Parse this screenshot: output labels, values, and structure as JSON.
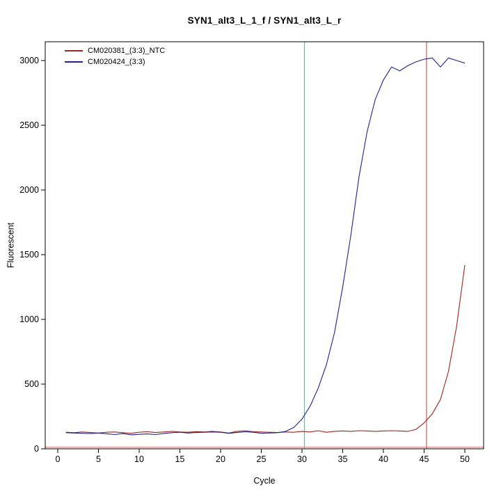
{
  "chart_data": {
    "type": "line",
    "title": "SYN1_alt3_L_1_f / SYN1_alt3_L_r",
    "xlabel": "Cycle",
    "ylabel": "Fluorescent",
    "xlim": [
      0,
      50
    ],
    "ylim": [
      0,
      3000
    ],
    "xticks": [
      0,
      5,
      10,
      15,
      20,
      25,
      30,
      35,
      40,
      45,
      50
    ],
    "yticks": [
      0,
      500,
      1000,
      1500,
      2000,
      2500,
      3000
    ],
    "grid": false,
    "legend_position": "top-left",
    "cycles": [
      1,
      2,
      3,
      4,
      5,
      6,
      7,
      8,
      9,
      10,
      11,
      12,
      13,
      14,
      15,
      16,
      17,
      18,
      19,
      20,
      21,
      22,
      23,
      24,
      25,
      26,
      27,
      28,
      29,
      30,
      31,
      32,
      33,
      34,
      35,
      36,
      37,
      38,
      39,
      40,
      41,
      42,
      43,
      44,
      45,
      46,
      47,
      48,
      49,
      50
    ],
    "series": [
      {
        "name": "CM020381_(3:3)_NTC",
        "color": "#9e2222",
        "values": [
          128,
          125,
          130,
          126,
          122,
          128,
          130,
          125,
          120,
          128,
          132,
          126,
          130,
          135,
          130,
          128,
          133,
          130,
          135,
          130,
          122,
          135,
          140,
          132,
          130,
          128,
          126,
          130,
          128,
          135,
          130,
          140,
          128,
          135,
          138,
          135,
          140,
          138,
          135,
          138,
          140,
          138,
          135,
          150,
          200,
          270,
          380,
          600,
          950,
          1420
        ]
      },
      {
        "name": "CM020424_(3:3)",
        "color": "#22228c",
        "values": [
          125,
          122,
          120,
          118,
          121,
          116,
          110,
          118,
          108,
          112,
          115,
          110,
          118,
          125,
          128,
          122,
          126,
          128,
          130,
          128,
          120,
          126,
          132,
          128,
          120,
          122,
          125,
          135,
          165,
          230,
          330,
          470,
          650,
          900,
          1250,
          1650,
          2100,
          2450,
          2700,
          2850,
          2950,
          2920,
          2960,
          2990,
          3010,
          3020,
          2950,
          3020,
          3000,
          2980
        ]
      }
    ],
    "vlines": [
      {
        "x": 30.3,
        "color": "#00e2e2",
        "name": "ct-marker-line-cyan"
      },
      {
        "x": 45.3,
        "color": "#cd5c5c",
        "name": "ct-marker-line-red"
      }
    ],
    "hlines": [
      {
        "y": 12,
        "color": "#e08080",
        "name": "fluorescence-threshold-line"
      }
    ]
  }
}
